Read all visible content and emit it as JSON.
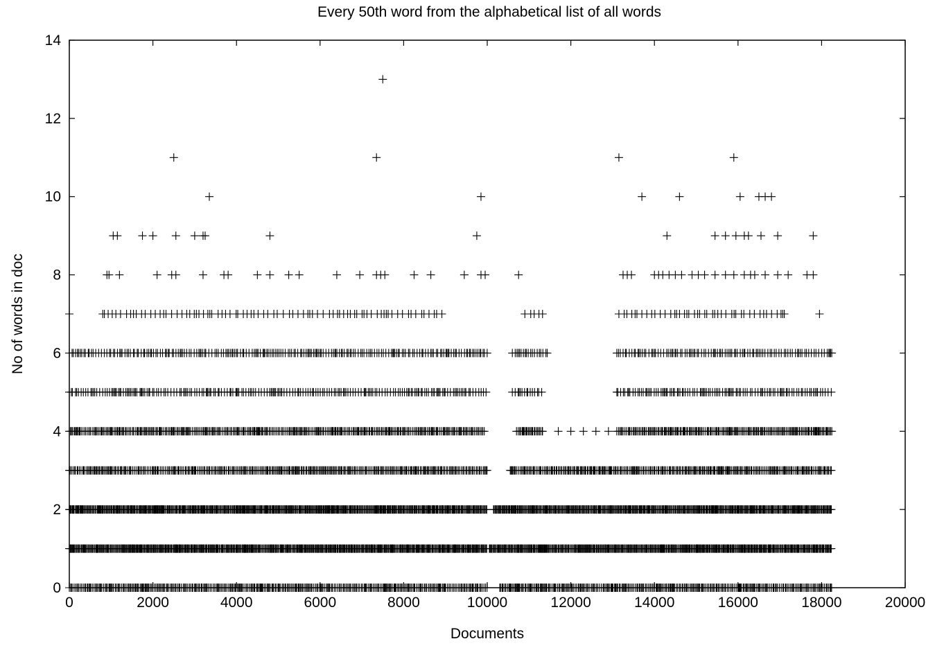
{
  "chart_data": {
    "type": "scatter",
    "title": "Every 50th word from the alphabetical list of all words",
    "xlabel": "Documents",
    "ylabel": "No of words in doc",
    "xlim": [
      0,
      20000
    ],
    "ylim": [
      0,
      14
    ],
    "xticks": [
      "0",
      "2000",
      "4000",
      "6000",
      "8000",
      "10000",
      "12000",
      "14000",
      "16000",
      "18000",
      "20000"
    ],
    "yticks": [
      "0",
      "2",
      "4",
      "6",
      "8",
      "10",
      "12",
      "14"
    ],
    "grid": false,
    "legend": "none",
    "marker": "+",
    "marker_color": "#000000",
    "band_samples": [
      {
        "y": 0,
        "ranges": [
          [
            0,
            10000
          ],
          [
            10300,
            13100
          ],
          [
            13100,
            18250
          ]
        ],
        "density": "dense"
      },
      {
        "y": 1,
        "ranges": [
          [
            0,
            10000
          ],
          [
            10050,
            18250
          ]
        ],
        "density": "very dense"
      },
      {
        "y": 2,
        "ranges": [
          [
            0,
            10000
          ],
          [
            10150,
            18250
          ]
        ],
        "density": "very dense"
      },
      {
        "y": 3,
        "ranges": [
          [
            0,
            10000
          ],
          [
            10550,
            18250
          ]
        ],
        "density": "dense"
      },
      {
        "y": 4,
        "ranges": [
          [
            0,
            9950
          ],
          [
            10700,
            11350
          ],
          [
            13100,
            18250
          ]
        ],
        "density": "dense"
      },
      {
        "y": 5,
        "ranges": [
          [
            0,
            10000
          ],
          [
            10600,
            11350
          ],
          [
            13100,
            18250
          ]
        ],
        "density": "medium"
      },
      {
        "y": 6,
        "ranges": [
          [
            0,
            10000
          ],
          [
            10600,
            11450
          ],
          [
            13100,
            18250
          ]
        ],
        "density": "medium"
      },
      {
        "y": 7,
        "ranges": [
          [
            800,
            9000
          ],
          [
            10900,
            11400
          ],
          [
            13150,
            17200
          ]
        ],
        "density": "sparse"
      }
    ],
    "points": [
      {
        "x": 0,
        "y": 7
      },
      {
        "x": 11700,
        "y": 4
      },
      {
        "x": 12000,
        "y": 4
      },
      {
        "x": 12300,
        "y": 4
      },
      {
        "x": 12600,
        "y": 4
      },
      {
        "x": 12900,
        "y": 4
      },
      {
        "x": 900,
        "y": 8
      },
      {
        "x": 950,
        "y": 8
      },
      {
        "x": 1200,
        "y": 8
      },
      {
        "x": 2100,
        "y": 8
      },
      {
        "x": 2450,
        "y": 8
      },
      {
        "x": 2550,
        "y": 8
      },
      {
        "x": 3200,
        "y": 8
      },
      {
        "x": 3700,
        "y": 8
      },
      {
        "x": 3800,
        "y": 8
      },
      {
        "x": 4500,
        "y": 8
      },
      {
        "x": 4800,
        "y": 8
      },
      {
        "x": 5250,
        "y": 8
      },
      {
        "x": 5500,
        "y": 8
      },
      {
        "x": 6400,
        "y": 8
      },
      {
        "x": 6950,
        "y": 8
      },
      {
        "x": 7350,
        "y": 8
      },
      {
        "x": 7450,
        "y": 8
      },
      {
        "x": 7550,
        "y": 8
      },
      {
        "x": 8250,
        "y": 8
      },
      {
        "x": 8650,
        "y": 8
      },
      {
        "x": 9450,
        "y": 8
      },
      {
        "x": 9850,
        "y": 8
      },
      {
        "x": 9950,
        "y": 8
      },
      {
        "x": 10750,
        "y": 8
      },
      {
        "x": 13250,
        "y": 8
      },
      {
        "x": 13350,
        "y": 8
      },
      {
        "x": 13450,
        "y": 8
      },
      {
        "x": 14000,
        "y": 8
      },
      {
        "x": 14100,
        "y": 8
      },
      {
        "x": 14200,
        "y": 8
      },
      {
        "x": 14350,
        "y": 8
      },
      {
        "x": 14500,
        "y": 8
      },
      {
        "x": 14650,
        "y": 8
      },
      {
        "x": 14900,
        "y": 8
      },
      {
        "x": 15050,
        "y": 8
      },
      {
        "x": 15200,
        "y": 8
      },
      {
        "x": 15450,
        "y": 8
      },
      {
        "x": 15700,
        "y": 8
      },
      {
        "x": 15900,
        "y": 8
      },
      {
        "x": 16150,
        "y": 8
      },
      {
        "x": 16300,
        "y": 8
      },
      {
        "x": 16400,
        "y": 8
      },
      {
        "x": 16650,
        "y": 8
      },
      {
        "x": 16950,
        "y": 8
      },
      {
        "x": 17200,
        "y": 8
      },
      {
        "x": 17650,
        "y": 8
      },
      {
        "x": 17800,
        "y": 8
      },
      {
        "x": 1050,
        "y": 9
      },
      {
        "x": 1150,
        "y": 9
      },
      {
        "x": 1750,
        "y": 9
      },
      {
        "x": 2000,
        "y": 9
      },
      {
        "x": 2550,
        "y": 9
      },
      {
        "x": 3000,
        "y": 9
      },
      {
        "x": 3200,
        "y": 9
      },
      {
        "x": 3250,
        "y": 9
      },
      {
        "x": 4800,
        "y": 9
      },
      {
        "x": 9750,
        "y": 9
      },
      {
        "x": 14300,
        "y": 9
      },
      {
        "x": 15450,
        "y": 9
      },
      {
        "x": 15700,
        "y": 9
      },
      {
        "x": 15950,
        "y": 9
      },
      {
        "x": 16150,
        "y": 9
      },
      {
        "x": 16250,
        "y": 9
      },
      {
        "x": 16550,
        "y": 9
      },
      {
        "x": 16950,
        "y": 9
      },
      {
        "x": 17800,
        "y": 9
      },
      {
        "x": 17950,
        "y": 7
      },
      {
        "x": 3350,
        "y": 10
      },
      {
        "x": 9850,
        "y": 10
      },
      {
        "x": 13700,
        "y": 10
      },
      {
        "x": 14600,
        "y": 10
      },
      {
        "x": 16050,
        "y": 10
      },
      {
        "x": 16500,
        "y": 10
      },
      {
        "x": 16650,
        "y": 10
      },
      {
        "x": 16800,
        "y": 10
      },
      {
        "x": 2500,
        "y": 11
      },
      {
        "x": 7350,
        "y": 11
      },
      {
        "x": 13150,
        "y": 11
      },
      {
        "x": 15900,
        "y": 11
      },
      {
        "x": 7500,
        "y": 13
      }
    ]
  }
}
